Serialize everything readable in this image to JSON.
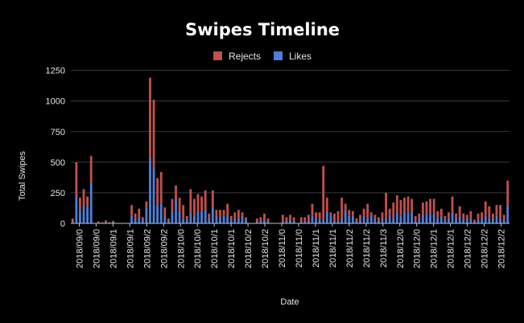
{
  "chart_data": {
    "type": "bar",
    "stacked": true,
    "title": "Swipes Timeline",
    "xlabel": "Date",
    "ylabel": "Total Swipes",
    "ylim": [
      0,
      1300
    ],
    "yticks": [
      0,
      250,
      500,
      750,
      1000,
      1250
    ],
    "grid": true,
    "legend_position": "top-center",
    "x_tick_labels": [
      "2018/09/0",
      "2018/09/0",
      "2018/09/1",
      "2018/09/1",
      "2018/09/2",
      "2018/09/2",
      "2018/10/0",
      "2018/10/0",
      "2018/10/1",
      "2018/10/1",
      "2018/10/2",
      "2018/10/2",
      "2018/11/0",
      "2018/11/0",
      "2018/11/1",
      "2018/11/1",
      "2018/11/2",
      "2018/11/2",
      "2018/11/3",
      "2018/12/0",
      "2018/12/0",
      "2018/12/1",
      "2018/12/1",
      "2018/12/2",
      "2018/12/2",
      "2018/12/2"
    ],
    "series": [
      {
        "name": "Likes",
        "color": "#4f7ed6",
        "values": [
          20,
          220,
          110,
          150,
          140,
          330,
          0,
          5,
          5,
          15,
          5,
          10,
          0,
          0,
          0,
          0,
          60,
          40,
          50,
          30,
          130,
          540,
          460,
          150,
          160,
          50,
          20,
          100,
          200,
          100,
          40,
          30,
          90,
          60,
          100,
          100,
          110,
          40,
          130,
          60,
          50,
          60,
          70,
          30,
          40,
          40,
          60,
          30,
          0,
          0,
          10,
          20,
          30,
          20,
          0,
          0,
          0,
          20,
          20,
          30,
          20,
          0,
          10,
          20,
          20,
          60,
          40,
          30,
          30,
          100,
          70,
          20,
          20,
          40,
          110,
          60,
          60,
          20,
          30,
          60,
          40,
          70,
          40,
          20,
          40,
          40,
          70,
          40,
          90,
          60,
          100,
          90,
          90,
          20,
          40,
          70,
          80,
          80,
          80,
          40,
          60,
          30,
          40,
          90,
          40,
          60,
          30,
          40,
          40,
          10,
          30,
          40,
          70,
          40,
          40,
          60,
          40,
          30,
          150
        ]
      },
      {
        "name": "Rejects",
        "color": "#c0504d",
        "values": [
          20,
          280,
          100,
          130,
          80,
          220,
          0,
          10,
          5,
          10,
          5,
          10,
          0,
          0,
          0,
          0,
          90,
          40,
          70,
          20,
          50,
          650,
          550,
          220,
          260,
          80,
          20,
          100,
          110,
          110,
          110,
          30,
          190,
          140,
          140,
          120,
          160,
          40,
          140,
          50,
          60,
          50,
          90,
          30,
          50,
          70,
          30,
          20,
          0,
          0,
          30,
          30,
          50,
          20,
          0,
          0,
          0,
          50,
          30,
          40,
          30,
          0,
          40,
          30,
          50,
          100,
          50,
          60,
          440,
          110,
          20,
          60,
          80,
          170,
          50,
          50,
          40,
          20,
          40,
          60,
          120,
          20,
          30,
          30,
          50,
          210,
          50,
          130,
          140,
          130,
          110,
          130,
          110,
          40,
          40,
          100,
          100,
          120,
          120,
          60,
          60,
          30,
          50,
          130,
          40,
          80,
          50,
          30,
          60,
          20,
          50,
          50,
          110,
          100,
          40,
          90,
          110,
          40,
          200
        ]
      }
    ]
  }
}
